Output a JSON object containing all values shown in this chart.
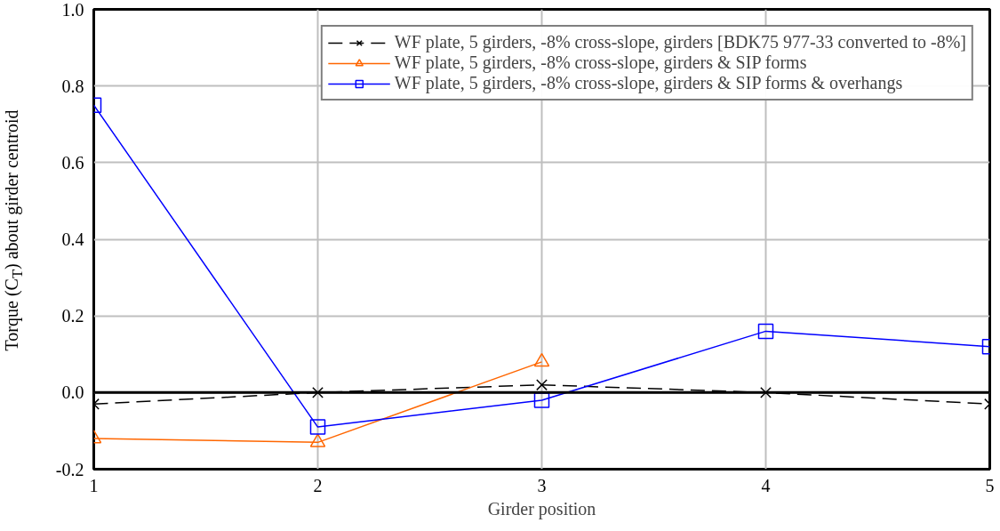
{
  "chart_data": {
    "type": "line",
    "xlabel": "Girder position",
    "ylabel": "Torque (C$_{T}$) about girder centroid",
    "x": [
      1,
      2,
      3,
      4,
      5
    ],
    "xlim": [
      1,
      5
    ],
    "xticks": [
      1,
      2,
      3,
      4,
      5
    ],
    "ylim": [
      -0.2,
      1.0
    ],
    "yticks": [
      -0.2,
      {
        "value": 0.0,
        "label": "0.0"
      },
      0.2,
      0.4,
      0.6,
      0.8,
      {
        "value": 1.0,
        "label": "1.0"
      }
    ],
    "grid": true,
    "legend": "top right",
    "ref_lines": [
      {
        "axis": "y",
        "value": 0.0,
        "color": "#000000"
      }
    ],
    "series": [
      {
        "name": "WF plate, 5 girders, -8% cross-slope, girders [BDK75 977-33 converted to -8%]",
        "color": "#000000",
        "marker": "cross",
        "line_style": "dashed",
        "values": [
          -0.03,
          0.0,
          0.02,
          0.0,
          -0.03
        ]
      },
      {
        "name": "WF plate, 5 girders, -8% cross-slope, girders & SIP forms",
        "color": "#ff6600",
        "marker": "triangle",
        "line_style": "solid",
        "values": [
          -0.12,
          -0.13,
          0.08,
          null,
          null
        ]
      },
      {
        "name": "WF plate, 5 girders, -8% cross-slope, girders & SIP forms & overhangs",
        "color": "#0000ff",
        "marker": "square",
        "line_style": "solid",
        "values": [
          0.75,
          -0.09,
          -0.02,
          0.16,
          0.12
        ]
      }
    ]
  }
}
